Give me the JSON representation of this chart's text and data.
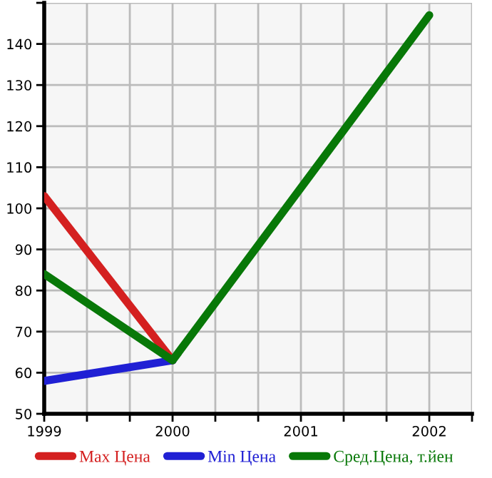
{
  "chart_data": {
    "type": "line",
    "x": [
      1999,
      2000,
      2001,
      2002
    ],
    "series": [
      {
        "name": "Max Цена",
        "color": "#d42020",
        "values": [
          103,
          63,
          null,
          null
        ]
      },
      {
        "name": "Min Цена",
        "color": "#2020d4",
        "values": [
          58,
          63,
          null,
          null
        ]
      },
      {
        "name": "Сред.Цена, т.йен",
        "color": "#087808",
        "values": [
          84,
          63,
          null,
          147
        ]
      }
    ],
    "xlim": [
      1999,
      2002.333
    ],
    "xticks": [
      1999,
      {
        "value": 1999.333,
        "label": null
      },
      {
        "value": 1999.667,
        "label": null
      },
      2000,
      {
        "value": 2000.333,
        "label": null
      },
      {
        "value": 2000.667,
        "label": null
      },
      2001,
      {
        "value": 2001.333,
        "label": null
      },
      {
        "value": 2001.667,
        "label": null
      },
      2002,
      {
        "value": 2002.333,
        "label": null
      }
    ],
    "ylim": [
      50,
      150
    ],
    "yticks": [
      50,
      60,
      70,
      80,
      90,
      100,
      110,
      120,
      130,
      140,
      {
        "value": 150,
        "label": null
      }
    ],
    "grid": true,
    "legend": "bottom",
    "marker": "none",
    "line_style": "solid"
  }
}
